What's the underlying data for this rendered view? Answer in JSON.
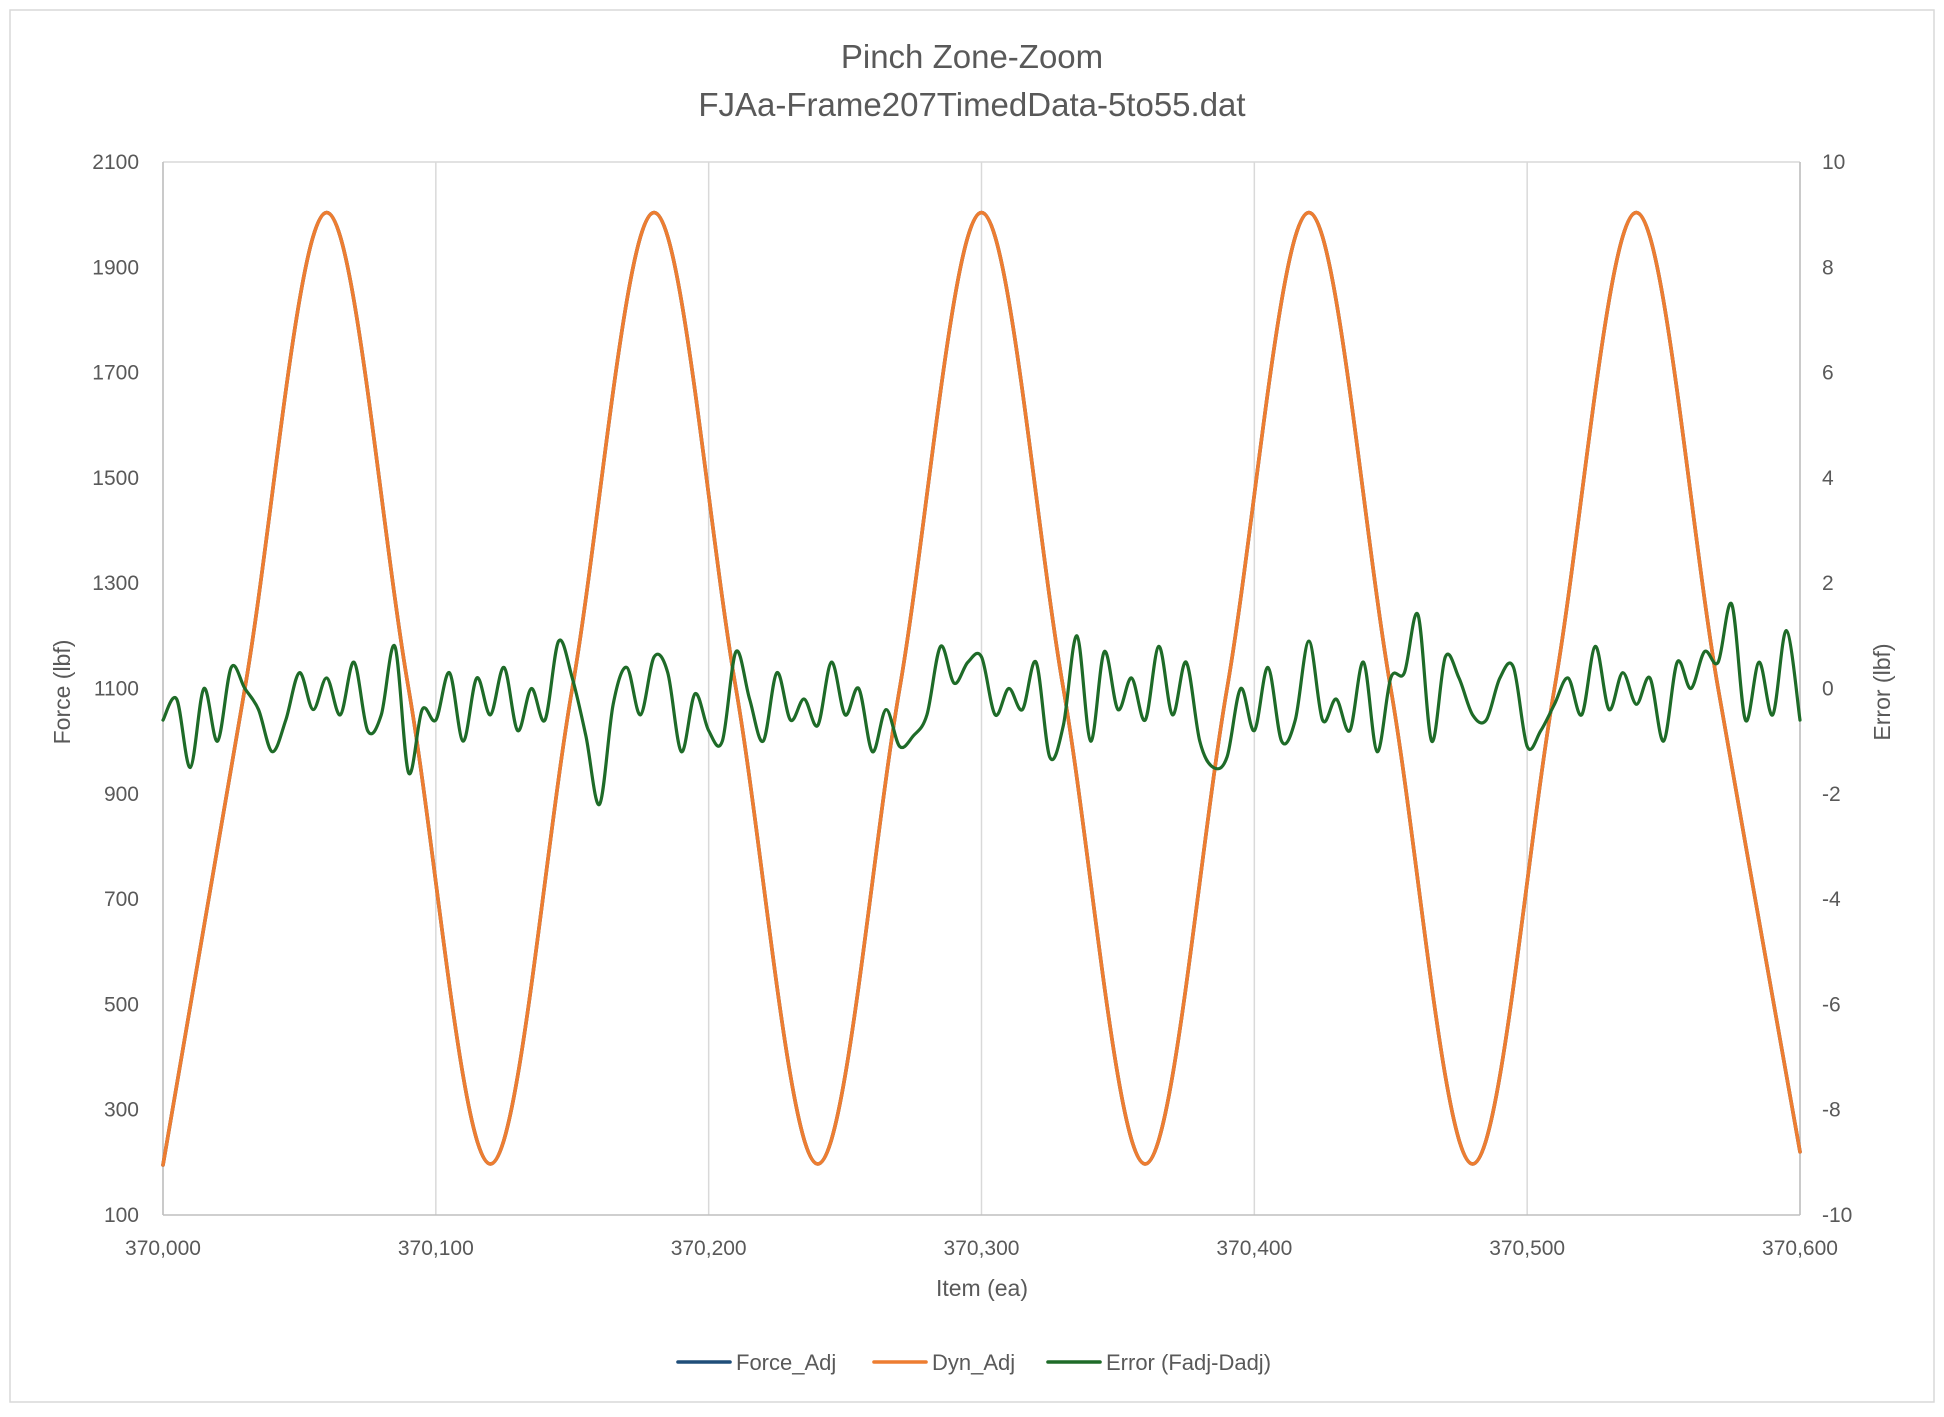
{
  "chart_data": {
    "type": "line",
    "title": "Pinch Zone-Zoom",
    "subtitle": "FJAa-Frame207TimedData-5to55.dat",
    "xlabel": "Item (ea)",
    "ylabel": "Force (lbf)",
    "y2label": "Error (lbf)",
    "xlim": [
      370000,
      370600
    ],
    "ylim": [
      100,
      2100
    ],
    "y2lim": [
      -10,
      10
    ],
    "x_ticks": [
      370000,
      370100,
      370200,
      370300,
      370400,
      370500,
      370600
    ],
    "x_tick_labels": [
      "370,000",
      "370,100",
      "370,200",
      "370,300",
      "370,400",
      "370,500",
      "370,600"
    ],
    "y_ticks": [
      100,
      300,
      500,
      700,
      900,
      1100,
      1300,
      1500,
      1700,
      1900,
      2100
    ],
    "y_tick_labels": [
      "100",
      "300",
      "500",
      "700",
      "900",
      "1100",
      "1300",
      "1500",
      "1700",
      "1900",
      "2100"
    ],
    "y2_ticks": [
      -10,
      -8,
      -6,
      -4,
      -2,
      0,
      2,
      4,
      6,
      8,
      10
    ],
    "y2_tick_labels": [
      "-10",
      "-8",
      "-6",
      "-4",
      "-2",
      "0",
      "2",
      "4",
      "6",
      "8",
      "10"
    ],
    "grid": "vertical",
    "legend_position": "bottom",
    "series": [
      {
        "name": "Force_Adj",
        "color": "#1f4e79",
        "axis": "left",
        "x": [
          370000,
          370030,
          370060,
          370090,
          370120,
          370150,
          370180,
          370210,
          370240,
          370270,
          370300,
          370330,
          370360,
          370390,
          370420,
          370450,
          370480,
          370510,
          370540,
          370570,
          370600
        ],
        "y": [
          195,
          1100,
          2004,
          1100,
          197,
          1100,
          2004,
          1100,
          197,
          1100,
          2004,
          1100,
          197,
          1100,
          2004,
          1100,
          197,
          1100,
          2004,
          1100,
          220
        ]
      },
      {
        "name": "Dyn_Adj",
        "color": "#ed7d31",
        "axis": "left",
        "x": [
          370000,
          370030,
          370060,
          370090,
          370120,
          370150,
          370180,
          370210,
          370240,
          370270,
          370300,
          370330,
          370360,
          370390,
          370420,
          370450,
          370480,
          370510,
          370540,
          370570,
          370600
        ],
        "y": [
          195,
          1100,
          2004,
          1100,
          197,
          1100,
          2004,
          1100,
          197,
          1100,
          2004,
          1100,
          197,
          1100,
          2004,
          1100,
          197,
          1100,
          2004,
          1100,
          220
        ]
      },
      {
        "name": "Error (Fadj-Dadj)",
        "color": "#1e6b28",
        "axis": "right",
        "x": [
          370000,
          370005,
          370010,
          370015,
          370020,
          370025,
          370030,
          370035,
          370040,
          370045,
          370050,
          370055,
          370060,
          370065,
          370070,
          370075,
          370080,
          370085,
          370090,
          370095,
          370100,
          370105,
          370110,
          370115,
          370120,
          370125,
          370130,
          370135,
          370140,
          370145,
          370150,
          370155,
          370160,
          370165,
          370170,
          370175,
          370180,
          370185,
          370190,
          370195,
          370200,
          370205,
          370210,
          370215,
          370220,
          370225,
          370230,
          370235,
          370240,
          370245,
          370250,
          370255,
          370260,
          370265,
          370270,
          370275,
          370280,
          370285,
          370290,
          370295,
          370300,
          370305,
          370310,
          370315,
          370320,
          370325,
          370330,
          370335,
          370340,
          370345,
          370350,
          370355,
          370360,
          370365,
          370370,
          370375,
          370380,
          370385,
          370390,
          370395,
          370400,
          370405,
          370410,
          370415,
          370420,
          370425,
          370430,
          370435,
          370440,
          370445,
          370450,
          370455,
          370460,
          370465,
          370470,
          370475,
          370480,
          370485,
          370490,
          370495,
          370500,
          370505,
          370510,
          370515,
          370520,
          370525,
          370530,
          370535,
          370540,
          370545,
          370550,
          370555,
          370560,
          370565,
          370570,
          370575,
          370580,
          370585,
          370590,
          370595,
          370600
        ],
        "y": [
          -0.6,
          -0.2,
          -1.5,
          0.0,
          -1.0,
          0.4,
          0.0,
          -0.4,
          -1.2,
          -0.6,
          0.3,
          -0.4,
          0.2,
          -0.5,
          0.5,
          -0.8,
          -0.5,
          0.8,
          -1.6,
          -0.4,
          -0.6,
          0.3,
          -1.0,
          0.2,
          -0.5,
          0.4,
          -0.8,
          0.0,
          -0.6,
          0.9,
          0.2,
          -0.9,
          -2.2,
          -0.3,
          0.4,
          -0.5,
          0.6,
          0.3,
          -1.2,
          -0.1,
          -0.8,
          -1.0,
          0.7,
          -0.2,
          -1.0,
          0.3,
          -0.6,
          -0.2,
          -0.7,
          0.5,
          -0.5,
          0.0,
          -1.2,
          -0.4,
          -1.1,
          -0.9,
          -0.5,
          0.8,
          0.1,
          0.5,
          0.6,
          -0.5,
          0.0,
          -0.4,
          0.5,
          -1.3,
          -0.7,
          1.0,
          -1.0,
          0.7,
          -0.4,
          0.2,
          -0.6,
          0.8,
          -0.5,
          0.5,
          -1.0,
          -1.5,
          -1.3,
          0.0,
          -0.8,
          0.4,
          -1.0,
          -0.6,
          0.9,
          -0.6,
          -0.2,
          -0.8,
          0.5,
          -1.2,
          0.2,
          0.3,
          1.4,
          -1.0,
          0.6,
          0.2,
          -0.5,
          -0.6,
          0.2,
          0.4,
          -1.1,
          -0.8,
          -0.3,
          0.2,
          -0.5,
          0.8,
          -0.4,
          0.3,
          -0.3,
          0.2,
          -1.0,
          0.5,
          0.0,
          0.7,
          0.5,
          1.6,
          -0.6,
          0.5,
          -0.5,
          1.1,
          -0.6
        ]
      }
    ]
  }
}
